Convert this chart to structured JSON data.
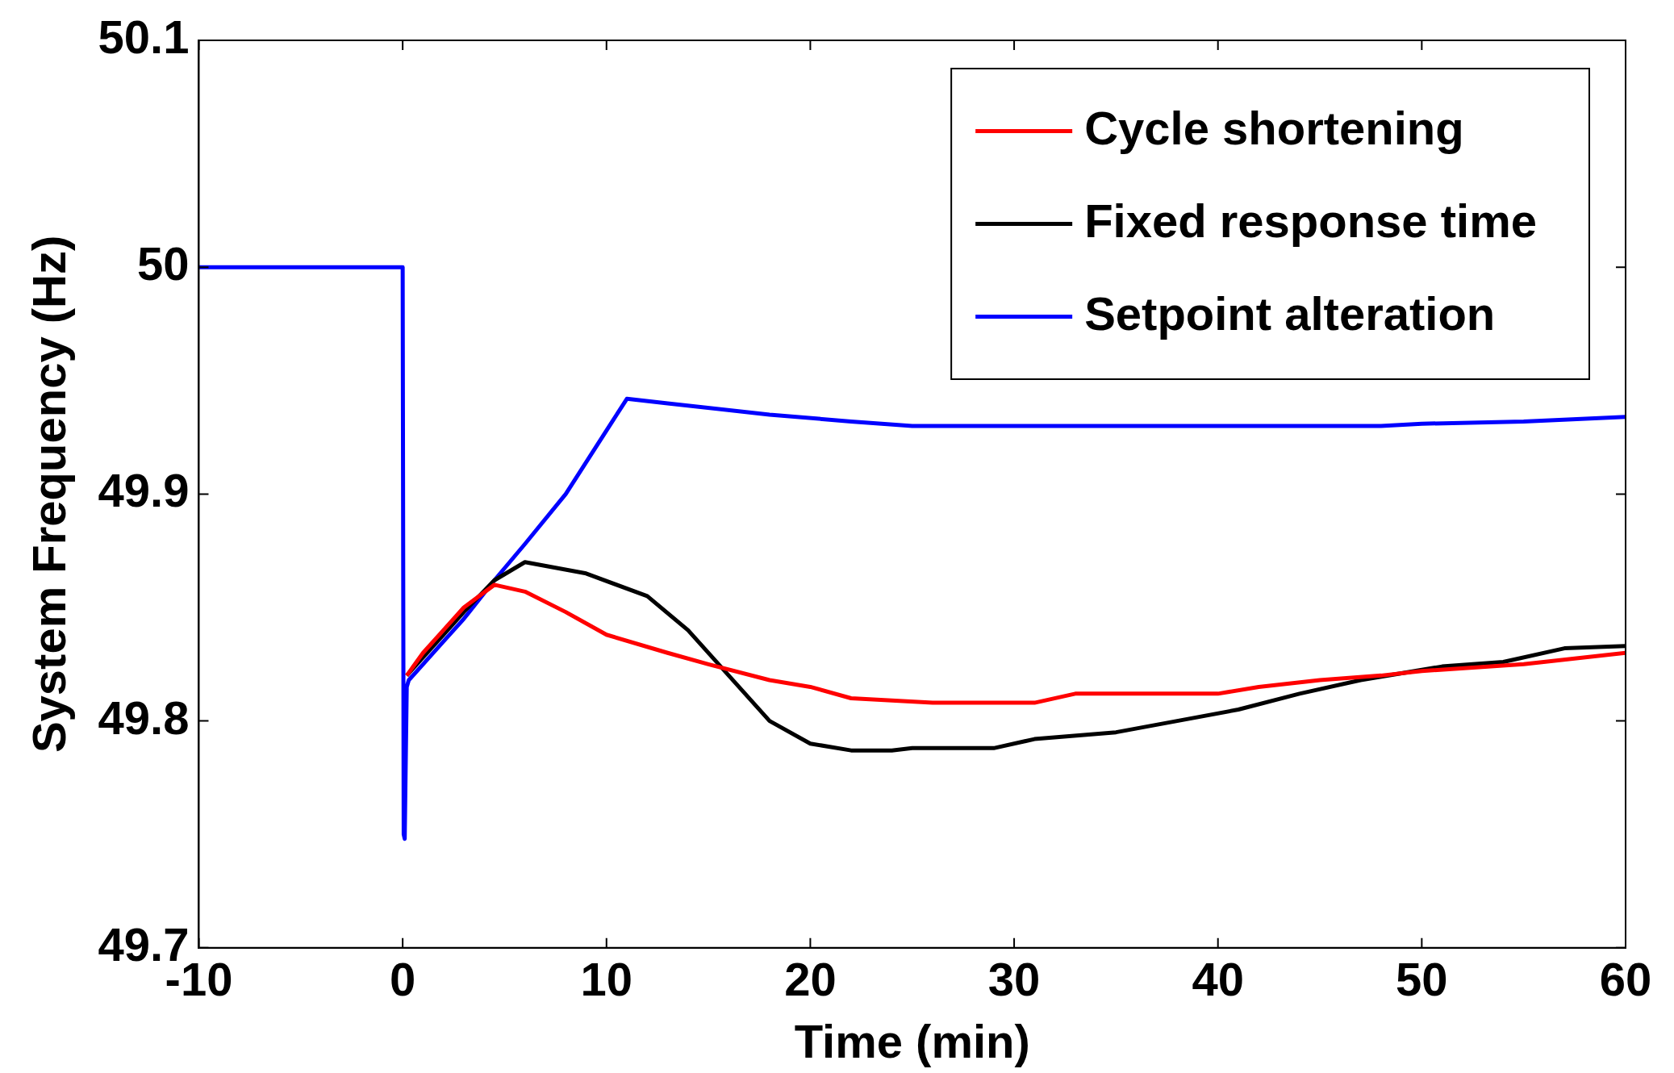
{
  "chart_data": {
    "type": "line",
    "xlabel": "Time (min)",
    "ylabel": "System Frequency (Hz)",
    "xlim": [
      -10,
      60
    ],
    "ylim": [
      49.7,
      50.1
    ],
    "xticks": [
      -10,
      0,
      10,
      20,
      30,
      40,
      50,
      60
    ],
    "yticks": [
      49.7,
      49.8,
      49.9,
      50,
      50.1
    ],
    "grid": false,
    "legend": "top right",
    "marker": "none",
    "line_style": "solid",
    "series": [
      {
        "name": "Cycle shortening",
        "color": "#ff0000",
        "x": [
          0.2,
          1,
          2,
          3,
          4.5,
          6,
          8,
          10,
          13,
          15,
          18,
          20,
          22,
          26,
          31,
          33,
          40,
          42,
          45,
          48,
          50,
          55,
          60
        ],
        "values": [
          49.82,
          49.83,
          49.84,
          49.85,
          49.86,
          49.857,
          49.848,
          49.838,
          49.83,
          49.825,
          49.818,
          49.815,
          49.81,
          49.808,
          49.808,
          49.812,
          49.812,
          49.815,
          49.818,
          49.82,
          49.822,
          49.825,
          49.83
        ]
      },
      {
        "name": "Fixed response time",
        "color": "#000000",
        "x": [
          0.2,
          1,
          2,
          3,
          4.5,
          6,
          9,
          12,
          14,
          16,
          18,
          20,
          22,
          24,
          25,
          29,
          31,
          35,
          38,
          41,
          44,
          47,
          51,
          54,
          57,
          60
        ],
        "values": [
          49.82,
          49.828,
          49.838,
          49.848,
          49.862,
          49.87,
          49.865,
          49.855,
          49.84,
          49.82,
          49.8,
          49.79,
          49.787,
          49.787,
          49.788,
          49.788,
          49.792,
          49.795,
          49.8,
          49.805,
          49.812,
          49.818,
          49.824,
          49.826,
          49.832,
          49.833
        ]
      },
      {
        "name": "Setpoint alteration",
        "color": "#0000ff",
        "x": [
          -10,
          0,
          0.05,
          0.1,
          0.2,
          0.3,
          1,
          2,
          3,
          4.5,
          6,
          8,
          10,
          11,
          13,
          18,
          22,
          25,
          48,
          50,
          55,
          60
        ],
        "values": [
          50,
          50,
          49.75,
          49.748,
          49.815,
          49.818,
          49.825,
          49.835,
          49.845,
          49.862,
          49.878,
          49.9,
          49.928,
          49.942,
          49.94,
          49.935,
          49.932,
          49.93,
          49.93,
          49.931,
          49.932,
          49.934
        ]
      }
    ]
  }
}
